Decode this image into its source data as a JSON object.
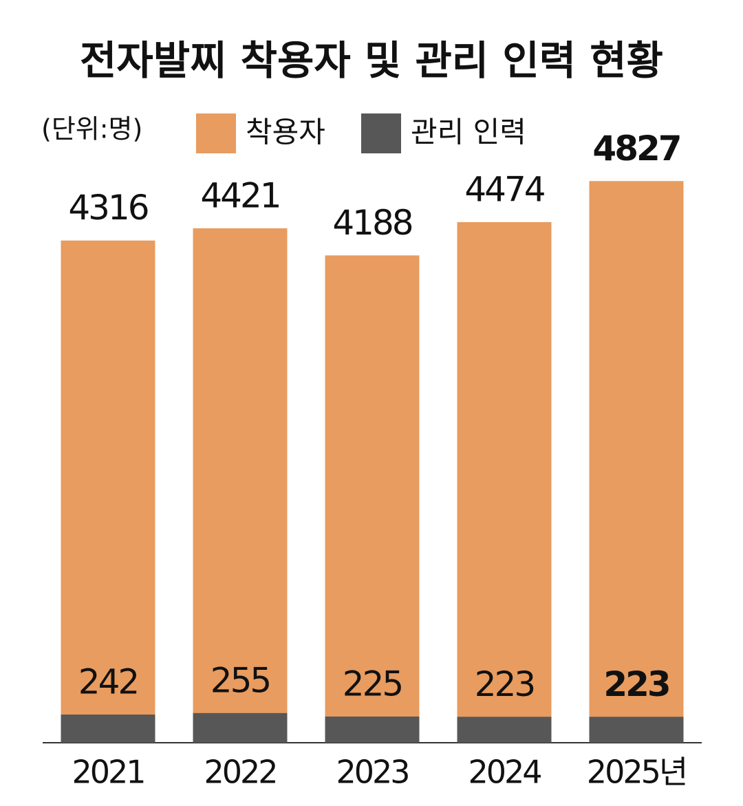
{
  "chart_data": {
    "type": "bar",
    "title": "전자발찌 착용자 및 관리 인력 현황",
    "unit_label": "(단위:명)",
    "categories": [
      "2021",
      "2022",
      "2023",
      "2024",
      "2025년"
    ],
    "series": [
      {
        "name": "착용자",
        "color": "#e89c60",
        "values": [
          4316,
          4421,
          4188,
          4474,
          4827
        ]
      },
      {
        "name": "관리 인력",
        "color": "#575757",
        "values": [
          242,
          255,
          225,
          223,
          223
        ]
      }
    ],
    "ylim": [
      0,
      5000
    ]
  }
}
